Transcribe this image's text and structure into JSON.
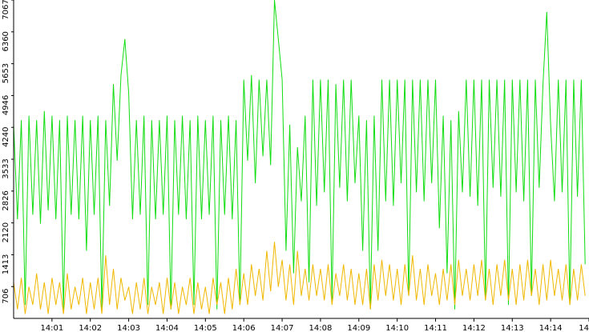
{
  "chart_data": {
    "type": "line",
    "xlim": [
      0,
      15
    ],
    "xticks": [
      {
        "value": 1,
        "label": "14:01"
      },
      {
        "value": 2,
        "label": "14:02"
      },
      {
        "value": 3,
        "label": "14:03"
      },
      {
        "value": 4,
        "label": "14:04"
      },
      {
        "value": 5,
        "label": "14:05"
      },
      {
        "value": 6,
        "label": "14:06"
      },
      {
        "value": 7,
        "label": "14:07"
      },
      {
        "value": 8,
        "label": "14:08"
      },
      {
        "value": 9,
        "label": "14:09"
      },
      {
        "value": 10,
        "label": "14:10"
      },
      {
        "value": 11,
        "label": "14:11"
      },
      {
        "value": 12,
        "label": "14:12"
      },
      {
        "value": 13,
        "label": "14:13"
      },
      {
        "value": 14,
        "label": "14:14"
      },
      {
        "value": 15,
        "label": "14"
      }
    ],
    "ylim": [
      0,
      7067
    ],
    "yticks": [
      706,
      1413,
      2120,
      2826,
      3533,
      4240,
      4946,
      5653,
      6360,
      7067
    ],
    "x": [
      0,
      0.1,
      0.2,
      0.3,
      0.4,
      0.5,
      0.6,
      0.7,
      0.8,
      0.9,
      1,
      1.1,
      1.2,
      1.3,
      1.4,
      1.5,
      1.6,
      1.7,
      1.8,
      1.9,
      2,
      2.1,
      2.2,
      2.3,
      2.4,
      2.5,
      2.6,
      2.7,
      2.8,
      2.9,
      3,
      3.1,
      3.2,
      3.3,
      3.4,
      3.5,
      3.6,
      3.7,
      3.8,
      3.9,
      4,
      4.1,
      4.2,
      4.3,
      4.4,
      4.5,
      4.6,
      4.7,
      4.8,
      4.9,
      5,
      5.1,
      5.2,
      5.3,
      5.4,
      5.5,
      5.6,
      5.7,
      5.8,
      5.9,
      6,
      6.1,
      6.2,
      6.3,
      6.4,
      6.5,
      6.6,
      6.7,
      6.8,
      6.9,
      7,
      7.1,
      7.2,
      7.3,
      7.4,
      7.5,
      7.6,
      7.7,
      7.8,
      7.9,
      8,
      8.1,
      8.2,
      8.3,
      8.4,
      8.5,
      8.6,
      8.7,
      8.8,
      8.9,
      9,
      9.1,
      9.2,
      9.3,
      9.4,
      9.5,
      9.6,
      9.7,
      9.8,
      9.9,
      10,
      10.1,
      10.2,
      10.3,
      10.4,
      10.5,
      10.6,
      10.7,
      10.8,
      10.9,
      11,
      11.1,
      11.2,
      11.3,
      11.4,
      11.5,
      11.6,
      11.7,
      11.8,
      11.9,
      12,
      12.1,
      12.2,
      12.3,
      12.4,
      12.5,
      12.6,
      12.7,
      12.8,
      12.9,
      13,
      13.1,
      13.2,
      13.3,
      13.4,
      13.5,
      13.6,
      13.7,
      13.8,
      13.9,
      14,
      14.1,
      14.2,
      14.3,
      14.4,
      14.5,
      14.6,
      14.7,
      14.8,
      14.9
    ],
    "series": [
      {
        "color": "#11dd11",
        "values": [
          4300,
          2200,
          4400,
          300,
          4500,
          2300,
          4400,
          2100,
          4600,
          2400,
          4500,
          2200,
          4400,
          200,
          4500,
          2300,
          4400,
          2200,
          4500,
          1500,
          4400,
          2300,
          4500,
          200,
          4400,
          2500,
          5200,
          3500,
          5400,
          6200,
          5000,
          2200,
          4400,
          2300,
          4500,
          300,
          4400,
          2200,
          4400,
          2300,
          4500,
          200,
          4400,
          2300,
          4500,
          2200,
          4400,
          300,
          4500,
          2200,
          4400,
          2300,
          4500,
          200,
          4400,
          2300,
          4500,
          2200,
          4400,
          300,
          5300,
          3500,
          5400,
          3000,
          5300,
          3600,
          5300,
          3400,
          7067,
          6200,
          5300,
          1500,
          4300,
          1000,
          3800,
          2600,
          4500,
          800,
          5300,
          2500,
          5300,
          2800,
          5300,
          400,
          5200,
          2900,
          5300,
          2600,
          5300,
          3000,
          4500,
          1500,
          4400,
          200,
          4500,
          1500,
          5300,
          2600,
          5300,
          2500,
          5300,
          3000,
          5300,
          500,
          5300,
          2800,
          5300,
          2600,
          5300,
          3000,
          5300,
          2000,
          4500,
          1000,
          4400,
          200,
          4600,
          2800,
          5300,
          2700,
          5300,
          2500,
          5300,
          400,
          5300,
          2900,
          5300,
          2700,
          5300,
          300,
          5300,
          2800,
          5300,
          2600,
          5300,
          500,
          5300,
          2900,
          5200,
          6800,
          4300,
          2600,
          5300,
          2800,
          5300,
          300,
          5300,
          2700,
          5300,
          1200
        ]
      },
      {
        "color": "#f0b800",
        "values": [
          800,
          200,
          900,
          100,
          700,
          300,
          1000,
          200,
          800,
          100,
          900,
          300,
          800,
          100,
          1000,
          200,
          700,
          300,
          900,
          100,
          800,
          200,
          900,
          100,
          1400,
          300,
          1100,
          200,
          900,
          400,
          700,
          100,
          800,
          200,
          900,
          100,
          700,
          300,
          800,
          100,
          900,
          200,
          800,
          100,
          700,
          300,
          900,
          100,
          800,
          200,
          700,
          100,
          900,
          300,
          800,
          100,
          900,
          200,
          1100,
          300,
          1000,
          300,
          1200,
          500,
          1100,
          400,
          1500,
          600,
          1700,
          700,
          1300,
          400,
          1200,
          300,
          1500,
          500,
          1100,
          400,
          1200,
          500,
          1100,
          400,
          1200,
          300,
          1000,
          500,
          1200,
          400,
          1100,
          300,
          1000,
          300,
          1100,
          200,
          1200,
          400,
          1300,
          500,
          1200,
          400,
          1100,
          300,
          1200,
          500,
          1400,
          400,
          1100,
          300,
          1200,
          500,
          1000,
          300,
          1100,
          400,
          1200,
          300,
          1300,
          500,
          1100,
          400,
          1200,
          500,
          1300,
          400,
          1100,
          300,
          1200,
          500,
          1300,
          400,
          1100,
          300,
          1200,
          400,
          1300,
          500,
          1100,
          300,
          1200,
          400,
          1300,
          500,
          1100,
          400,
          1200,
          300,
          1100,
          400,
          1200,
          500
        ]
      }
    ]
  }
}
